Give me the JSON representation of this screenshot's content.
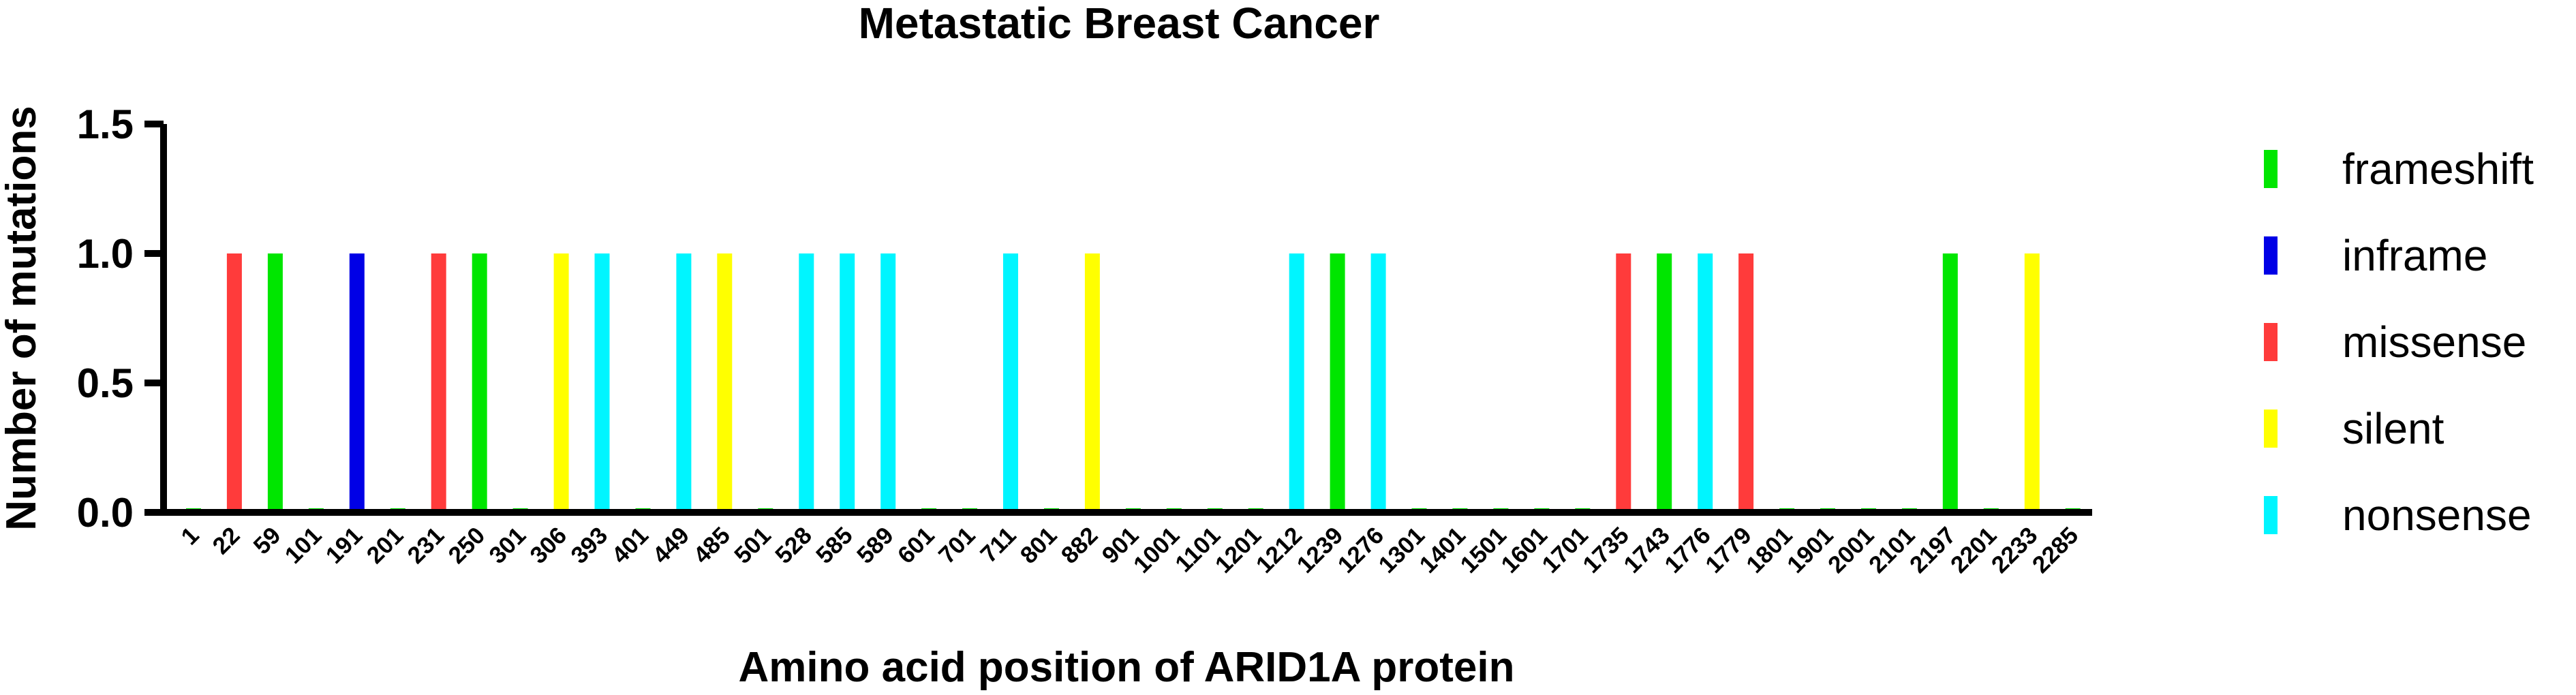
{
  "chart_data": {
    "type": "bar",
    "title": "Metastatic Breast Cancer",
    "xlabel": "Amino acid position of ARID1A protein",
    "ylabel": "Number of mutations",
    "ylim": [
      0,
      1.5
    ],
    "yticks": [
      "0.0",
      "0.5",
      "1.0",
      "1.5"
    ],
    "grid": false,
    "legend_position": "right",
    "legend": [
      {
        "name": "frameshift",
        "color": "#00e600"
      },
      {
        "name": "inframe",
        "color": "#0000e6"
      },
      {
        "name": "missense",
        "color": "#ff3b3b"
      },
      {
        "name": "silent",
        "color": "#ffff00"
      },
      {
        "name": "nonsense",
        "color": "#00f5ff"
      }
    ],
    "categories": [
      "1",
      "22",
      "59",
      "101",
      "191",
      "201",
      "231",
      "250",
      "301",
      "306",
      "393",
      "401",
      "449",
      "485",
      "501",
      "528",
      "585",
      "589",
      "601",
      "701",
      "711",
      "801",
      "882",
      "901",
      "1001",
      "1101",
      "1201",
      "1212",
      "1239",
      "1276",
      "1301",
      "1401",
      "1501",
      "1601",
      "1701",
      "1735",
      "1743",
      "1776",
      "1779",
      "1801",
      "1901",
      "2001",
      "2101",
      "2197",
      "2201",
      "2233",
      "2285"
    ],
    "bars": [
      {
        "category": "1",
        "value": 0,
        "type": "frameshift"
      },
      {
        "category": "22",
        "value": 1,
        "type": "missense"
      },
      {
        "category": "59",
        "value": 1,
        "type": "frameshift"
      },
      {
        "category": "101",
        "value": 0,
        "type": "frameshift"
      },
      {
        "category": "191",
        "value": 1,
        "type": "inframe"
      },
      {
        "category": "201",
        "value": 0,
        "type": "frameshift"
      },
      {
        "category": "231",
        "value": 1,
        "type": "missense"
      },
      {
        "category": "250",
        "value": 1,
        "type": "frameshift"
      },
      {
        "category": "301",
        "value": 0,
        "type": "frameshift"
      },
      {
        "category": "306",
        "value": 1,
        "type": "silent"
      },
      {
        "category": "393",
        "value": 1,
        "type": "nonsense"
      },
      {
        "category": "401",
        "value": 0,
        "type": "frameshift"
      },
      {
        "category": "449",
        "value": 1,
        "type": "nonsense"
      },
      {
        "category": "485",
        "value": 1,
        "type": "silent"
      },
      {
        "category": "501",
        "value": 0,
        "type": "frameshift"
      },
      {
        "category": "528",
        "value": 1,
        "type": "nonsense"
      },
      {
        "category": "585",
        "value": 1,
        "type": "nonsense"
      },
      {
        "category": "589",
        "value": 1,
        "type": "nonsense"
      },
      {
        "category": "601",
        "value": 0,
        "type": "frameshift"
      },
      {
        "category": "701",
        "value": 0,
        "type": "frameshift"
      },
      {
        "category": "711",
        "value": 1,
        "type": "nonsense"
      },
      {
        "category": "801",
        "value": 0,
        "type": "frameshift"
      },
      {
        "category": "882",
        "value": 1,
        "type": "silent"
      },
      {
        "category": "901",
        "value": 0,
        "type": "frameshift"
      },
      {
        "category": "1001",
        "value": 0,
        "type": "frameshift"
      },
      {
        "category": "1101",
        "value": 0,
        "type": "frameshift"
      },
      {
        "category": "1201",
        "value": 0,
        "type": "frameshift"
      },
      {
        "category": "1212",
        "value": 1,
        "type": "nonsense"
      },
      {
        "category": "1239",
        "value": 1,
        "type": "frameshift"
      },
      {
        "category": "1276",
        "value": 1,
        "type": "nonsense"
      },
      {
        "category": "1301",
        "value": 0,
        "type": "frameshift"
      },
      {
        "category": "1401",
        "value": 0,
        "type": "frameshift"
      },
      {
        "category": "1501",
        "value": 0,
        "type": "frameshift"
      },
      {
        "category": "1601",
        "value": 0,
        "type": "frameshift"
      },
      {
        "category": "1701",
        "value": 0,
        "type": "frameshift"
      },
      {
        "category": "1735",
        "value": 1,
        "type": "missense"
      },
      {
        "category": "1743",
        "value": 1,
        "type": "frameshift"
      },
      {
        "category": "1776",
        "value": 1,
        "type": "nonsense"
      },
      {
        "category": "1779",
        "value": 1,
        "type": "missense"
      },
      {
        "category": "1801",
        "value": 0,
        "type": "frameshift"
      },
      {
        "category": "1901",
        "value": 0,
        "type": "frameshift"
      },
      {
        "category": "2001",
        "value": 0,
        "type": "frameshift"
      },
      {
        "category": "2101",
        "value": 0,
        "type": "frameshift"
      },
      {
        "category": "2197",
        "value": 1,
        "type": "frameshift"
      },
      {
        "category": "2201",
        "value": 0,
        "type": "frameshift"
      },
      {
        "category": "2233",
        "value": 1,
        "type": "silent"
      },
      {
        "category": "2285",
        "value": 0,
        "type": "frameshift"
      }
    ]
  }
}
